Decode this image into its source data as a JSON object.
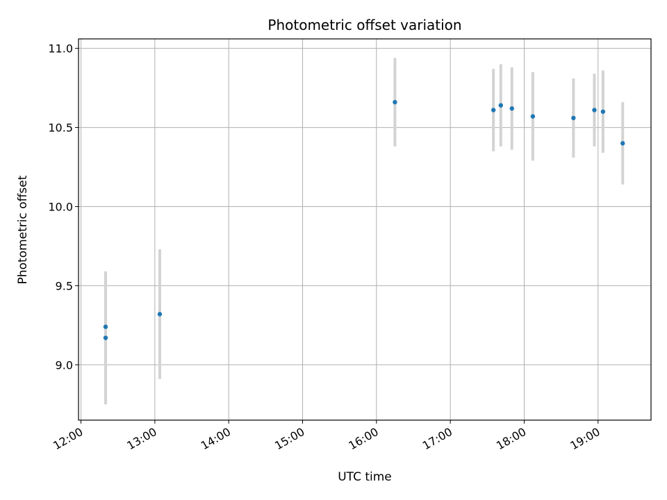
{
  "chart_data": {
    "type": "scatter",
    "title": "Photometric offset variation",
    "xlabel": "UTC time",
    "ylabel": "Photometric offset",
    "x_ticks": [
      "12:00",
      "13:00",
      "14:00",
      "15:00",
      "16:00",
      "17:00",
      "18:00",
      "19:00"
    ],
    "y_ticks": [
      "9.0",
      "9.5",
      "10.0",
      "10.5",
      "11.0"
    ],
    "xlim": [
      "11:58",
      "19:43"
    ],
    "ylim": [
      8.65,
      11.06
    ],
    "grid": true,
    "series": [
      {
        "x": [
          "12:20",
          "12:20",
          "13:04",
          "16:15",
          "17:35",
          "17:41",
          "17:50",
          "18:07",
          "18:40",
          "18:57",
          "19:04",
          "19:20"
        ],
        "y": [
          9.24,
          9.17,
          9.32,
          10.66,
          10.61,
          10.64,
          10.62,
          10.57,
          10.56,
          10.61,
          10.6,
          10.4
        ],
        "yerr": [
          0.35,
          0.42,
          0.41,
          0.28,
          0.26,
          0.26,
          0.26,
          0.28,
          0.25,
          0.23,
          0.26,
          0.26
        ],
        "marker_color": "#1f77b4",
        "errorbar_color": "#d3d3d3"
      }
    ]
  }
}
